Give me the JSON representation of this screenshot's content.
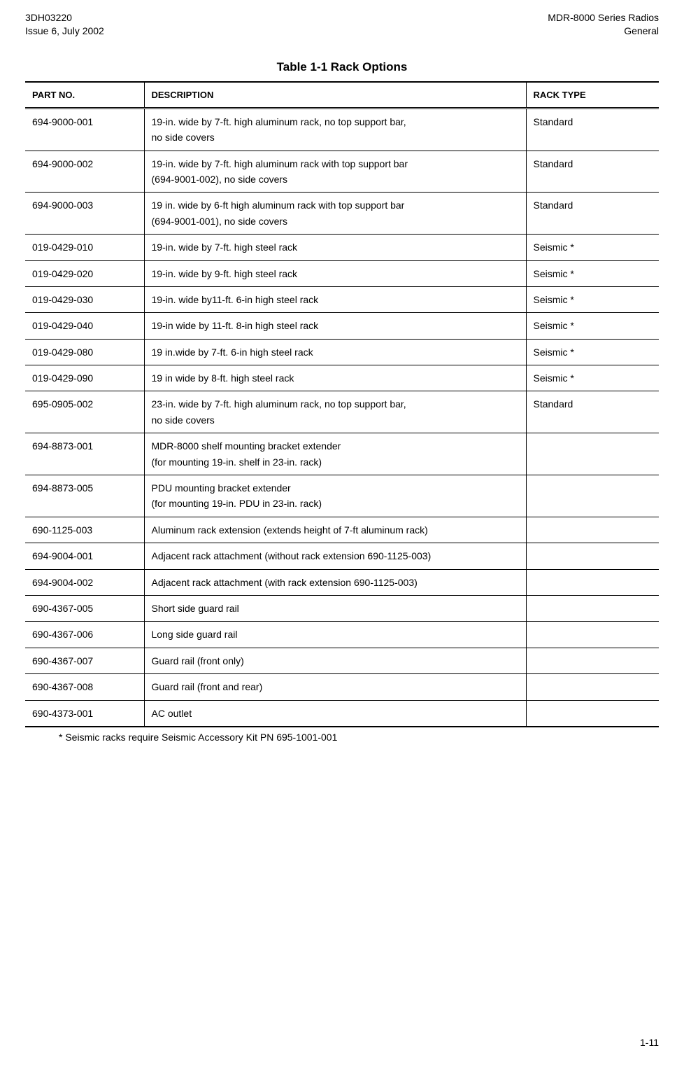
{
  "header": {
    "doc_id": "3DH03220",
    "issue": "Issue 6, July 2002",
    "product": "MDR-8000 Series Radios",
    "section": "General"
  },
  "table": {
    "caption": "Table 1-1  Rack Options",
    "columns": {
      "part_no": "PART NO.",
      "description": "DESCRIPTION",
      "rack_type": "RACK TYPE"
    },
    "rows": [
      {
        "part_no": "694-9000-001",
        "description": "19-in. wide by 7-ft. high aluminum rack, no top support bar,\nno side covers",
        "rack_type": "Standard"
      },
      {
        "part_no": "694-9000-002",
        "description": "19-in. wide by 7-ft. high aluminum rack with top support bar\n(694-9001-002), no side covers",
        "rack_type": "Standard"
      },
      {
        "part_no": "694-9000-003",
        "description": "19 in. wide by 6-ft high aluminum rack with top support bar\n(694-9001-001), no side covers",
        "rack_type": "Standard"
      },
      {
        "part_no": "019-0429-010",
        "description": "19-in. wide by 7-ft. high steel rack",
        "rack_type": "Seismic *"
      },
      {
        "part_no": "019-0429-020",
        "description": "19-in. wide by 9-ft. high steel rack",
        "rack_type": "Seismic *"
      },
      {
        "part_no": "019-0429-030",
        "description": "19-in. wide by11-ft. 6-in high steel rack",
        "rack_type": "Seismic *"
      },
      {
        "part_no": "019-0429-040",
        "description": "19-in wide by 11-ft. 8-in high steel rack",
        "rack_type": "Seismic *"
      },
      {
        "part_no": "019-0429-080",
        "description": "19 in.wide by 7-ft. 6-in high steel rack",
        "rack_type": "Seismic *"
      },
      {
        "part_no": "019-0429-090",
        "description": "19 in wide by 8-ft. high steel rack",
        "rack_type": "Seismic *"
      },
      {
        "part_no": "695-0905-002",
        "description": "23-in. wide by 7-ft. high aluminum rack, no top support bar,\nno side covers",
        "rack_type": "Standard"
      },
      {
        "part_no": "694-8873-001",
        "description": "MDR-8000 shelf mounting bracket extender\n(for mounting 19-in. shelf in 23-in. rack)",
        "rack_type": ""
      },
      {
        "part_no": "694-8873-005",
        "description": "PDU mounting bracket extender\n(for mounting 19-in. PDU in 23-in. rack)",
        "rack_type": ""
      },
      {
        "part_no": "690-1125-003",
        "description": "Aluminum rack extension (extends height of 7-ft aluminum rack)",
        "rack_type": ""
      },
      {
        "part_no": "694-9004-001",
        "description": "Adjacent rack attachment (without rack extension 690-1125-003)",
        "rack_type": ""
      },
      {
        "part_no": "694-9004-002",
        "description": "Adjacent rack attachment (with rack extension 690-1125-003)",
        "rack_type": ""
      },
      {
        "part_no": "690-4367-005",
        "description": "Short side guard rail",
        "rack_type": ""
      },
      {
        "part_no": "690-4367-006",
        "description": "Long side guard rail",
        "rack_type": ""
      },
      {
        "part_no": "690-4367-007",
        "description": "Guard rail (front only)",
        "rack_type": ""
      },
      {
        "part_no": "690-4367-008",
        "description": "Guard rail (front and rear)",
        "rack_type": ""
      },
      {
        "part_no": "690-4373-001",
        "description": "AC outlet",
        "rack_type": ""
      }
    ]
  },
  "footnote": "* Seismic racks require Seismic Accessory Kit PN 695-1001-001",
  "page_number": "1-11"
}
